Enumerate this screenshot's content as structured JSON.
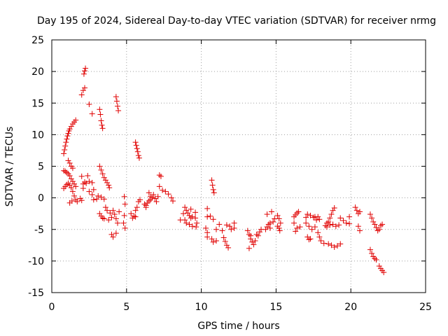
{
  "chart_data": {
    "type": "scatter",
    "title": "Day 195 of 2024, Sidereal Day-to-day VTEC variation (SDTVAR) for receiver nrmg",
    "xlabel": "GPS time / hours",
    "ylabel": "SDTVAR / TECUs",
    "xlim": [
      0,
      25
    ],
    "ylim": [
      -15,
      25
    ],
    "xticks": [
      0,
      5,
      10,
      15,
      20,
      25
    ],
    "yticks": [
      -15,
      -10,
      -5,
      0,
      5,
      10,
      15,
      20,
      25
    ],
    "xtick_labels": [
      "0",
      "5",
      "10",
      "15",
      "20",
      "25"
    ],
    "ytick_labels": [
      "-15",
      "-10",
      "-5",
      "0",
      "5",
      "10",
      "15",
      "20",
      "25"
    ],
    "grid": true,
    "marker": "+",
    "color": "#e00000",
    "series": [
      {
        "name": "SDTVAR",
        "points": [
          [
            0.8,
            7.0
          ],
          [
            0.85,
            7.6
          ],
          [
            0.9,
            8.2
          ],
          [
            0.95,
            8.8
          ],
          [
            1.0,
            9.3
          ],
          [
            1.05,
            9.8
          ],
          [
            1.1,
            10.2
          ],
          [
            1.15,
            10.6
          ],
          [
            1.2,
            10.9
          ],
          [
            1.3,
            11.3
          ],
          [
            1.4,
            11.7
          ],
          [
            1.5,
            12.0
          ],
          [
            1.6,
            12.3
          ],
          [
            0.8,
            4.3
          ],
          [
            0.9,
            4.2
          ],
          [
            1.0,
            4.0
          ],
          [
            1.1,
            3.8
          ],
          [
            1.2,
            3.5
          ],
          [
            1.3,
            3.0
          ],
          [
            1.4,
            2.6
          ],
          [
            1.5,
            2.2
          ],
          [
            1.6,
            1.8
          ],
          [
            0.8,
            1.5
          ],
          [
            0.9,
            1.8
          ],
          [
            1.0,
            2.1
          ],
          [
            1.1,
            2.3
          ],
          [
            1.2,
            2.0
          ],
          [
            1.3,
            1.6
          ],
          [
            1.4,
            1.0
          ],
          [
            1.5,
            0.3
          ],
          [
            1.6,
            -0.3
          ],
          [
            1.7,
            -0.6
          ],
          [
            1.2,
            -0.8
          ],
          [
            1.35,
            -0.5
          ],
          [
            1.1,
            5.9
          ],
          [
            1.2,
            5.5
          ],
          [
            1.3,
            5.0
          ],
          [
            1.4,
            4.7
          ],
          [
            2.1,
            2.2
          ],
          [
            2.2,
            2.5
          ],
          [
            2.3,
            2.3
          ],
          [
            2.5,
            2.6
          ],
          [
            2.7,
            2.4
          ],
          [
            2.0,
            3.4
          ],
          [
            2.4,
            3.5
          ],
          [
            2.1,
            1.5
          ],
          [
            2.5,
            1.0
          ],
          [
            2.7,
            0.5
          ],
          [
            2.8,
            1.3
          ],
          [
            1.9,
            -0.1
          ],
          [
            2.0,
            -0.4
          ],
          [
            2.8,
            -0.3
          ],
          [
            3.0,
            -0.2
          ],
          [
            2.1,
            17.0
          ],
          [
            2.2,
            17.4
          ],
          [
            2.15,
            19.6
          ],
          [
            2.2,
            20.1
          ],
          [
            2.25,
            20.5
          ],
          [
            2.0,
            16.3
          ],
          [
            2.5,
            14.8
          ],
          [
            2.7,
            13.3
          ],
          [
            3.2,
            14.0
          ],
          [
            3.25,
            13.2
          ],
          [
            3.3,
            12.2
          ],
          [
            3.35,
            11.5
          ],
          [
            3.4,
            11.0
          ],
          [
            3.2,
            5.0
          ],
          [
            3.3,
            4.4
          ],
          [
            3.4,
            3.8
          ],
          [
            3.5,
            3.2
          ],
          [
            3.6,
            2.8
          ],
          [
            3.7,
            2.4
          ],
          [
            3.8,
            2.0
          ],
          [
            3.85,
            1.6
          ],
          [
            3.1,
            0.3
          ],
          [
            3.3,
            0.1
          ],
          [
            3.5,
            -0.2
          ],
          [
            3.6,
            -1.5
          ],
          [
            3.2,
            -2.5
          ],
          [
            3.3,
            -2.9
          ],
          [
            3.4,
            -3.2
          ],
          [
            3.7,
            -2.0
          ],
          [
            3.9,
            -2.4
          ],
          [
            4.0,
            -3.1
          ],
          [
            3.8,
            -3.5
          ],
          [
            3.5,
            -3.3
          ],
          [
            4.3,
            16.0
          ],
          [
            4.35,
            15.3
          ],
          [
            4.4,
            14.5
          ],
          [
            4.45,
            13.8
          ],
          [
            4.1,
            -2.0
          ],
          [
            4.2,
            -2.6
          ],
          [
            4.3,
            -3.3
          ],
          [
            4.4,
            -4.0
          ],
          [
            4.5,
            -2.2
          ],
          [
            4.0,
            -5.8
          ],
          [
            4.1,
            -6.2
          ],
          [
            4.3,
            -5.6
          ],
          [
            4.8,
            -4.0
          ],
          [
            4.9,
            -4.8
          ],
          [
            4.85,
            -2.8
          ],
          [
            4.9,
            -1.0
          ],
          [
            4.85,
            0.2
          ],
          [
            5.6,
            -2.0
          ],
          [
            5.5,
            -2.9
          ],
          [
            5.7,
            -1.5
          ],
          [
            5.3,
            -2.5
          ],
          [
            5.8,
            -0.6
          ],
          [
            5.9,
            -0.3
          ],
          [
            5.4,
            -3.2
          ],
          [
            5.6,
            -3.0
          ],
          [
            5.6,
            8.8
          ],
          [
            5.65,
            8.3
          ],
          [
            5.7,
            7.8
          ],
          [
            5.75,
            7.3
          ],
          [
            5.8,
            6.7
          ],
          [
            5.85,
            6.3
          ],
          [
            6.2,
            -1.0
          ],
          [
            6.3,
            -1.2
          ],
          [
            6.4,
            -0.8
          ],
          [
            6.5,
            -0.5
          ],
          [
            6.6,
            -0.3
          ],
          [
            6.7,
            0.0
          ],
          [
            6.5,
            0.8
          ],
          [
            6.6,
            0.2
          ],
          [
            6.8,
            0.5
          ],
          [
            6.9,
            -0.1
          ],
          [
            7.0,
            -0.6
          ],
          [
            7.1,
            0.2
          ],
          [
            6.3,
            -1.5
          ],
          [
            7.2,
            3.6
          ],
          [
            7.3,
            3.4
          ],
          [
            7.2,
            1.8
          ],
          [
            7.4,
            1.2
          ],
          [
            7.6,
            1.0
          ],
          [
            7.8,
            0.6
          ],
          [
            8.0,
            0.0
          ],
          [
            8.1,
            -0.5
          ],
          [
            8.9,
            -1.5
          ],
          [
            9.0,
            -2.0
          ],
          [
            9.1,
            -2.4
          ],
          [
            9.2,
            -2.8
          ],
          [
            9.3,
            -3.2
          ],
          [
            8.9,
            -3.5
          ],
          [
            9.0,
            -4.0
          ],
          [
            9.2,
            -4.2
          ],
          [
            9.4,
            -4.5
          ],
          [
            9.3,
            -1.8
          ],
          [
            8.8,
            -2.5
          ],
          [
            9.4,
            -3.0
          ],
          [
            8.6,
            -3.5
          ],
          [
            9.6,
            -3.2
          ],
          [
            9.7,
            -4.0
          ],
          [
            9.6,
            -2.3
          ],
          [
            9.65,
            -4.6
          ],
          [
            10.4,
            -1.7
          ],
          [
            10.4,
            -3.0
          ],
          [
            10.3,
            -4.8
          ],
          [
            10.4,
            -5.5
          ],
          [
            10.4,
            -6.2
          ],
          [
            10.7,
            -6.5
          ],
          [
            10.8,
            -7.0
          ],
          [
            11.0,
            -6.8
          ],
          [
            10.7,
            2.8
          ],
          [
            10.75,
            2.0
          ],
          [
            10.8,
            1.3
          ],
          [
            10.85,
            0.8
          ],
          [
            10.6,
            -2.9
          ],
          [
            10.8,
            -3.4
          ],
          [
            11.0,
            -5.0
          ],
          [
            11.2,
            -4.2
          ],
          [
            11.4,
            -5.2
          ],
          [
            11.5,
            -6.3
          ],
          [
            11.6,
            -6.9
          ],
          [
            11.7,
            -7.5
          ],
          [
            11.8,
            -7.9
          ],
          [
            11.7,
            -4.3
          ],
          [
            11.9,
            -4.5
          ],
          [
            12.0,
            -5.0
          ],
          [
            12.2,
            -4.8
          ],
          [
            12.2,
            -4.0
          ],
          [
            13.1,
            -5.2
          ],
          [
            13.2,
            -5.8
          ],
          [
            13.3,
            -6.5
          ],
          [
            13.4,
            -7.0
          ],
          [
            13.5,
            -7.4
          ],
          [
            13.2,
            -8.0
          ],
          [
            13.6,
            -6.8
          ],
          [
            13.8,
            -6.0
          ],
          [
            13.9,
            -5.4
          ],
          [
            14.0,
            -5.0
          ],
          [
            13.3,
            -6.0
          ],
          [
            13.7,
            -5.8
          ],
          [
            14.3,
            -5.0
          ],
          [
            14.4,
            -4.6
          ],
          [
            14.5,
            -4.2
          ],
          [
            14.6,
            -4.0
          ],
          [
            14.4,
            -2.6
          ],
          [
            14.7,
            -2.2
          ],
          [
            14.8,
            -3.8
          ],
          [
            14.9,
            -3.3
          ],
          [
            14.6,
            -4.8
          ],
          [
            15.1,
            -4.5
          ],
          [
            15.2,
            -4.8
          ],
          [
            15.25,
            -5.2
          ],
          [
            15.3,
            -4.0
          ],
          [
            15.1,
            -2.8
          ],
          [
            15.2,
            -3.3
          ],
          [
            16.2,
            -3.0
          ],
          [
            16.3,
            -2.7
          ],
          [
            16.4,
            -2.4
          ],
          [
            16.5,
            -2.2
          ],
          [
            16.2,
            -4.0
          ],
          [
            16.4,
            -4.8
          ],
          [
            16.6,
            -4.6
          ],
          [
            16.3,
            -5.3
          ],
          [
            17.0,
            -4.0
          ],
          [
            17.2,
            -4.5
          ],
          [
            17.4,
            -5.0
          ],
          [
            17.1,
            -6.2
          ],
          [
            17.2,
            -6.6
          ],
          [
            17.3,
            -6.5
          ],
          [
            17.0,
            -3.1
          ],
          [
            17.1,
            -2.6
          ],
          [
            17.3,
            -2.8
          ],
          [
            17.5,
            -3.1
          ],
          [
            17.6,
            -3.0
          ],
          [
            17.7,
            -3.5
          ],
          [
            17.8,
            -3.0
          ],
          [
            17.9,
            -3.4
          ],
          [
            17.6,
            -4.6
          ],
          [
            17.8,
            -5.5
          ],
          [
            17.9,
            -6.2
          ],
          [
            18.0,
            -6.8
          ],
          [
            18.2,
            -7.2
          ],
          [
            18.3,
            -4.4
          ],
          [
            18.4,
            -4.0
          ],
          [
            18.5,
            -3.8
          ],
          [
            18.6,
            -3.2
          ],
          [
            18.7,
            -2.6
          ],
          [
            18.8,
            -2.0
          ],
          [
            18.9,
            -1.6
          ],
          [
            18.4,
            -4.6
          ],
          [
            18.6,
            -4.3
          ],
          [
            18.8,
            -4.2
          ],
          [
            19.0,
            -4.5
          ],
          [
            19.2,
            -4.3
          ],
          [
            18.5,
            -7.3
          ],
          [
            18.7,
            -7.5
          ],
          [
            18.9,
            -7.8
          ],
          [
            19.1,
            -7.6
          ],
          [
            19.3,
            -7.3
          ],
          [
            19.3,
            -3.2
          ],
          [
            19.5,
            -3.6
          ],
          [
            19.7,
            -4.0
          ],
          [
            19.9,
            -4.1
          ],
          [
            19.9,
            -3.0
          ],
          [
            20.3,
            -1.5
          ],
          [
            20.4,
            -2.0
          ],
          [
            20.5,
            -2.5
          ],
          [
            20.6,
            -2.2
          ],
          [
            20.5,
            -4.5
          ],
          [
            20.6,
            -5.2
          ],
          [
            21.3,
            -2.6
          ],
          [
            21.4,
            -3.2
          ],
          [
            21.5,
            -3.8
          ],
          [
            21.6,
            -4.2
          ],
          [
            21.7,
            -4.7
          ],
          [
            21.8,
            -5.2
          ],
          [
            21.9,
            -5.0
          ],
          [
            22.0,
            -4.4
          ],
          [
            22.1,
            -4.2
          ],
          [
            21.3,
            -8.2
          ],
          [
            21.4,
            -8.8
          ],
          [
            21.5,
            -9.3
          ],
          [
            21.6,
            -9.6
          ],
          [
            21.7,
            -9.8
          ],
          [
            21.9,
            -10.8
          ],
          [
            22.0,
            -11.2
          ],
          [
            22.1,
            -11.5
          ],
          [
            22.2,
            -11.8
          ]
        ]
      }
    ]
  }
}
